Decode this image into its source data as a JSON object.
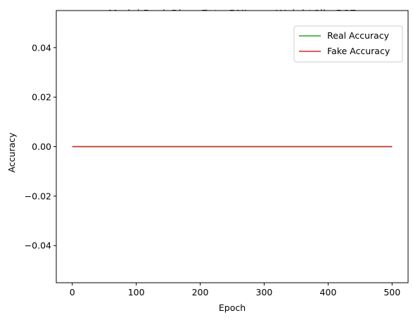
{
  "chart_data": {
    "type": "line",
    "title": "Model BasicBiganExtraBNLowerWeightClip BSE",
    "xlabel": "Epoch",
    "ylabel": "Accuracy",
    "xlim": [
      -25,
      525
    ],
    "ylim": [
      -0.055,
      0.055
    ],
    "xticks": [
      0,
      100,
      200,
      300,
      400,
      500
    ],
    "xtick_labels": [
      "0",
      "100",
      "200",
      "300",
      "400",
      "500"
    ],
    "yticks": [
      -0.04,
      -0.02,
      0.0,
      0.02,
      0.04
    ],
    "ytick_labels": [
      "−0.04",
      "−0.02",
      "0.00",
      "0.02",
      "0.04"
    ],
    "grid": false,
    "legend_position": "top-right",
    "series": [
      {
        "name": "Real Accuracy",
        "color": "#2ca02c",
        "x": [
          0,
          500
        ],
        "y": [
          0.0,
          0.0
        ]
      },
      {
        "name": "Fake Accuracy",
        "color": "#d62728",
        "x": [
          0,
          500
        ],
        "y": [
          0.0,
          0.0
        ]
      }
    ]
  }
}
